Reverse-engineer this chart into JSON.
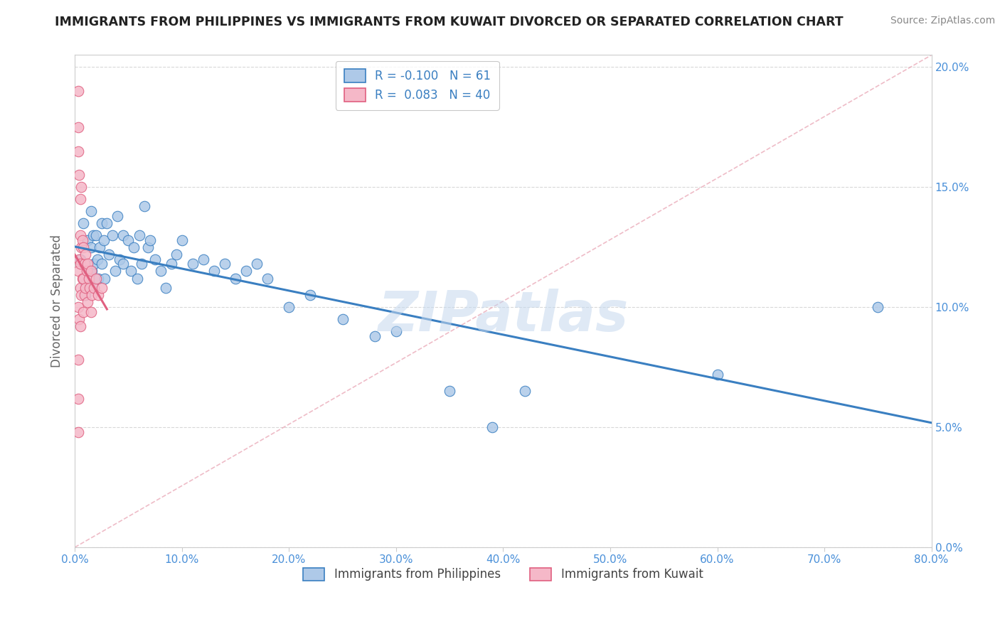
{
  "title": "IMMIGRANTS FROM PHILIPPINES VS IMMIGRANTS FROM KUWAIT DIVORCED OR SEPARATED CORRELATION CHART",
  "source": "Source: ZipAtlas.com",
  "ylabel": "Divorced or Separated",
  "legend_label_blue": "Immigrants from Philippines",
  "legend_label_pink": "Immigrants from Kuwait",
  "R_blue": -0.1,
  "N_blue": 61,
  "R_pink": 0.083,
  "N_pink": 40,
  "xlim": [
    0.0,
    0.8
  ],
  "ylim": [
    0.0,
    0.205
  ],
  "blue_color": "#aec9e8",
  "pink_color": "#f5b8c8",
  "blue_line_color": "#3a7fc1",
  "pink_line_color": "#e06080",
  "watermark": "ZIPatlas",
  "blue_x": [
    0.005,
    0.008,
    0.01,
    0.01,
    0.012,
    0.013,
    0.015,
    0.015,
    0.016,
    0.017,
    0.018,
    0.018,
    0.02,
    0.021,
    0.022,
    0.023,
    0.025,
    0.025,
    0.027,
    0.028,
    0.03,
    0.032,
    0.035,
    0.038,
    0.04,
    0.042,
    0.045,
    0.045,
    0.05,
    0.052,
    0.055,
    0.058,
    0.06,
    0.062,
    0.065,
    0.068,
    0.07,
    0.075,
    0.08,
    0.085,
    0.09,
    0.095,
    0.1,
    0.11,
    0.12,
    0.13,
    0.14,
    0.15,
    0.16,
    0.17,
    0.18,
    0.2,
    0.22,
    0.25,
    0.28,
    0.3,
    0.35,
    0.39,
    0.42,
    0.6,
    0.75
  ],
  "blue_y": [
    0.12,
    0.135,
    0.11,
    0.105,
    0.128,
    0.115,
    0.14,
    0.125,
    0.115,
    0.13,
    0.118,
    0.108,
    0.13,
    0.12,
    0.112,
    0.125,
    0.135,
    0.118,
    0.128,
    0.112,
    0.135,
    0.122,
    0.13,
    0.115,
    0.138,
    0.12,
    0.13,
    0.118,
    0.128,
    0.115,
    0.125,
    0.112,
    0.13,
    0.118,
    0.142,
    0.125,
    0.128,
    0.12,
    0.115,
    0.108,
    0.118,
    0.122,
    0.128,
    0.118,
    0.12,
    0.115,
    0.118,
    0.112,
    0.115,
    0.118,
    0.112,
    0.1,
    0.105,
    0.095,
    0.088,
    0.09,
    0.065,
    0.05,
    0.065,
    0.072,
    0.1
  ],
  "pink_x": [
    0.003,
    0.003,
    0.003,
    0.003,
    0.003,
    0.004,
    0.004,
    0.004,
    0.005,
    0.005,
    0.005,
    0.005,
    0.005,
    0.006,
    0.006,
    0.006,
    0.007,
    0.007,
    0.008,
    0.008,
    0.008,
    0.009,
    0.009,
    0.01,
    0.01,
    0.011,
    0.012,
    0.012,
    0.013,
    0.014,
    0.015,
    0.015,
    0.016,
    0.018,
    0.02,
    0.022,
    0.025,
    0.003,
    0.003,
    0.003
  ],
  "pink_y": [
    0.19,
    0.175,
    0.165,
    0.115,
    0.1,
    0.155,
    0.12,
    0.095,
    0.145,
    0.13,
    0.118,
    0.108,
    0.092,
    0.15,
    0.125,
    0.105,
    0.128,
    0.112,
    0.125,
    0.112,
    0.098,
    0.118,
    0.105,
    0.122,
    0.108,
    0.115,
    0.118,
    0.102,
    0.112,
    0.108,
    0.115,
    0.098,
    0.105,
    0.108,
    0.112,
    0.105,
    0.108,
    0.078,
    0.062,
    0.048
  ]
}
